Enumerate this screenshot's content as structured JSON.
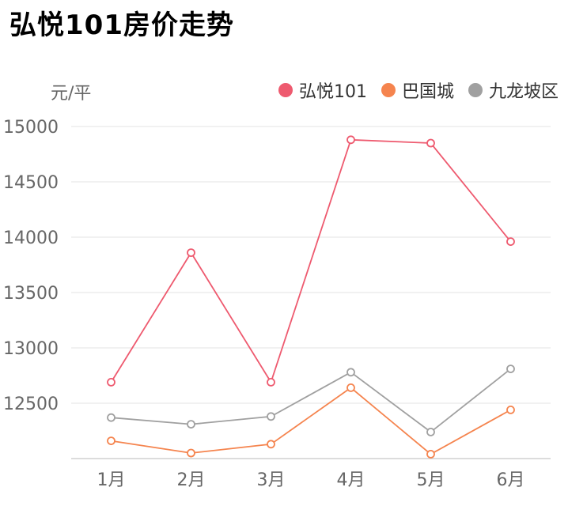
{
  "title": "弘悦101房价走势",
  "chart_data": {
    "type": "line",
    "title": "弘悦101房价走势",
    "ylabel": "元/平",
    "xlabel": "",
    "categories": [
      "1月",
      "2月",
      "3月",
      "4月",
      "5月",
      "6月"
    ],
    "series": [
      {
        "name": "弘悦101",
        "color": "#ee5a6f",
        "values": [
          12690,
          13860,
          12690,
          14880,
          14850,
          13960
        ]
      },
      {
        "name": "巴国城",
        "color": "#f5844e",
        "values": [
          12160,
          12050,
          12130,
          12640,
          12040,
          12440
        ]
      },
      {
        "name": "九龙坡区",
        "color": "#a0a0a0",
        "values": [
          12370,
          12310,
          12380,
          12780,
          12240,
          12810
        ]
      }
    ],
    "yticks": [
      12500,
      13000,
      13500,
      14000,
      14500,
      15000
    ],
    "ylim": [
      12000,
      15000
    ],
    "grid": true,
    "legend_position": "top-right"
  }
}
